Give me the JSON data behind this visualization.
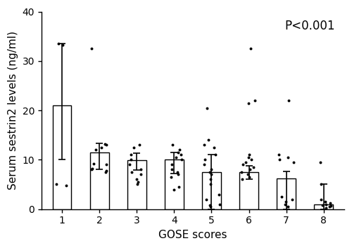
{
  "categories": [
    1,
    2,
    3,
    4,
    5,
    6,
    7,
    8
  ],
  "bar_means": [
    21.0,
    11.5,
    9.9,
    10.0,
    7.5,
    7.5,
    6.2,
    1.0
  ],
  "bar_errors_upper": [
    12.5,
    1.8,
    1.5,
    1.5,
    3.5,
    1.2,
    1.5,
    4.0
  ],
  "bar_errors_lower": [
    11.0,
    3.5,
    2.0,
    2.8,
    7.5,
    1.5,
    6.2,
    1.0
  ],
  "scatter_data": {
    "1": [
      5.0,
      4.8,
      33.5,
      33.2
    ],
    "2": [
      8.0,
      7.8,
      7.5,
      8.2,
      9.0,
      9.2,
      12.0,
      12.5,
      13.0,
      13.2,
      32.5
    ],
    "3": [
      5.0,
      5.5,
      6.0,
      7.0,
      7.5,
      8.0,
      9.0,
      10.0,
      11.0,
      12.5,
      13.0
    ],
    "4": [
      4.0,
      4.5,
      6.5,
      7.0,
      7.5,
      8.0,
      9.0,
      10.0,
      10.5,
      11.0,
      11.5,
      12.0,
      13.0
    ],
    "5": [
      0.5,
      0.8,
      1.0,
      2.0,
      3.0,
      5.0,
      6.0,
      7.0,
      7.5,
      8.0,
      9.0,
      10.0,
      11.0,
      12.5,
      13.0,
      14.0,
      20.5
    ],
    "6": [
      6.0,
      6.5,
      7.0,
      7.5,
      8.0,
      8.5,
      9.0,
      9.5,
      10.0,
      10.5,
      11.0,
      21.5,
      22.0,
      32.5
    ],
    "7": [
      0.5,
      1.0,
      1.5,
      2.0,
      2.5,
      9.5,
      10.0,
      10.5,
      11.0,
      22.0
    ],
    "8": [
      0.3,
      0.5,
      0.6,
      0.8,
      1.0,
      1.2,
      1.5,
      2.0,
      5.0,
      9.5
    ]
  },
  "ylim": [
    0,
    40
  ],
  "yticks": [
    0,
    10,
    20,
    30,
    40
  ],
  "xlabel": "GOSE scores",
  "ylabel": "Serum sestrin2 levels (ng/ml)",
  "pvalue_text": "P<0.001",
  "bar_color": "#ffffff",
  "bar_edge_color": "#000000",
  "scatter_color": "#000000",
  "error_color": "#000000",
  "bar_width": 0.5,
  "figsize": [
    5.0,
    3.53
  ],
  "dpi": 100,
  "tick_font_size": 10,
  "label_font_size": 11,
  "pvalue_font_size": 12
}
